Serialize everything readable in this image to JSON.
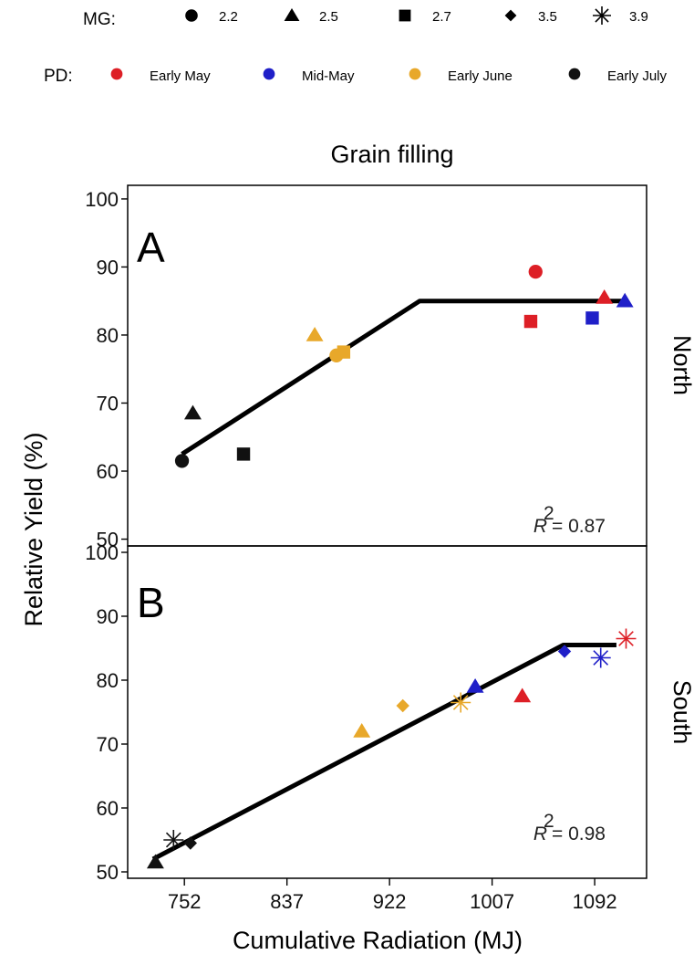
{
  "legend": {
    "mg_label": "MG:",
    "pd_label": "PD:",
    "mg_items": [
      {
        "label": "2.2",
        "shape": "circle"
      },
      {
        "label": "2.5",
        "shape": "triangle"
      },
      {
        "label": "2.7",
        "shape": "square"
      },
      {
        "label": "3.5",
        "shape": "diamond"
      },
      {
        "label": "3.9",
        "shape": "asterisk"
      }
    ],
    "pd_items": [
      {
        "label": "Early May",
        "color": "#dd1f26"
      },
      {
        "label": "Mid-May",
        "color": "#1f1fc8"
      },
      {
        "label": "Early June",
        "color": "#e8a82a"
      },
      {
        "label": "Early July",
        "color": "#111111"
      }
    ]
  },
  "chart_data": {
    "type": "scatter",
    "title": "Grain filling",
    "xlabel": "Cumulative Radiation (MJ)",
    "ylabel": "Relative Yield (%)",
    "xlim": [
      705,
      1135
    ],
    "x_ticks": [
      752,
      837,
      922,
      1007,
      1092
    ],
    "grid": false,
    "panels": [
      {
        "letter": "A",
        "strip": "North",
        "ylim": [
          49,
          102
        ],
        "y_ticks": [
          50,
          60,
          70,
          80,
          90,
          100
        ],
        "r2_label": "R",
        "r2_value": "= 0.87",
        "fit": {
          "x": [
            750,
            947,
            1117
          ],
          "y": [
            62.5,
            85,
            85
          ]
        },
        "points": [
          {
            "x": 750,
            "y": 61.5,
            "mg": "2.2",
            "pd": "Early July"
          },
          {
            "x": 759,
            "y": 68.5,
            "mg": "2.5",
            "pd": "Early July"
          },
          {
            "x": 801,
            "y": 62.5,
            "mg": "2.7",
            "pd": "Early July"
          },
          {
            "x": 860,
            "y": 80,
            "mg": "2.5",
            "pd": "Early June"
          },
          {
            "x": 878,
            "y": 77,
            "mg": "2.2",
            "pd": "Early June"
          },
          {
            "x": 884,
            "y": 77.5,
            "mg": "2.7",
            "pd": "Early June"
          },
          {
            "x": 1043,
            "y": 89.3,
            "mg": "2.2",
            "pd": "Early May"
          },
          {
            "x": 1039,
            "y": 82,
            "mg": "2.7",
            "pd": "Early May"
          },
          {
            "x": 1100,
            "y": 85.5,
            "mg": "2.5",
            "pd": "Early May"
          },
          {
            "x": 1090,
            "y": 82.5,
            "mg": "2.7",
            "pd": "Mid-May"
          },
          {
            "x": 1117,
            "y": 85,
            "mg": "2.5",
            "pd": "Mid-May"
          }
        ]
      },
      {
        "letter": "B",
        "strip": "South",
        "ylim": [
          49,
          101
        ],
        "y_ticks": [
          50,
          60,
          70,
          80,
          90,
          100
        ],
        "r2_label": "R",
        "r2_value": "= 0.98",
        "fit": {
          "x": [
            726,
            1066,
            1110
          ],
          "y": [
            52,
            85.5,
            85.5
          ]
        },
        "points": [
          {
            "x": 728,
            "y": 51.5,
            "mg": "2.5",
            "pd": "Early July"
          },
          {
            "x": 743,
            "y": 55,
            "mg": "3.9",
            "pd": "Early July"
          },
          {
            "x": 757,
            "y": 54.5,
            "mg": "3.5",
            "pd": "Early July"
          },
          {
            "x": 899,
            "y": 72,
            "mg": "2.5",
            "pd": "Early June"
          },
          {
            "x": 933,
            "y": 76,
            "mg": "3.5",
            "pd": "Early June"
          },
          {
            "x": 981,
            "y": 76.5,
            "mg": "3.9",
            "pd": "Early June"
          },
          {
            "x": 993,
            "y": 79,
            "mg": "2.5",
            "pd": "Mid-May"
          },
          {
            "x": 1032,
            "y": 77.5,
            "mg": "2.5",
            "pd": "Early May"
          },
          {
            "x": 1067,
            "y": 84.5,
            "mg": "3.5",
            "pd": "Mid-May"
          },
          {
            "x": 1097,
            "y": 83.5,
            "mg": "3.9",
            "pd": "Mid-May"
          },
          {
            "x": 1118,
            "y": 86.5,
            "mg": "3.9",
            "pd": "Early May"
          }
        ]
      }
    ]
  }
}
